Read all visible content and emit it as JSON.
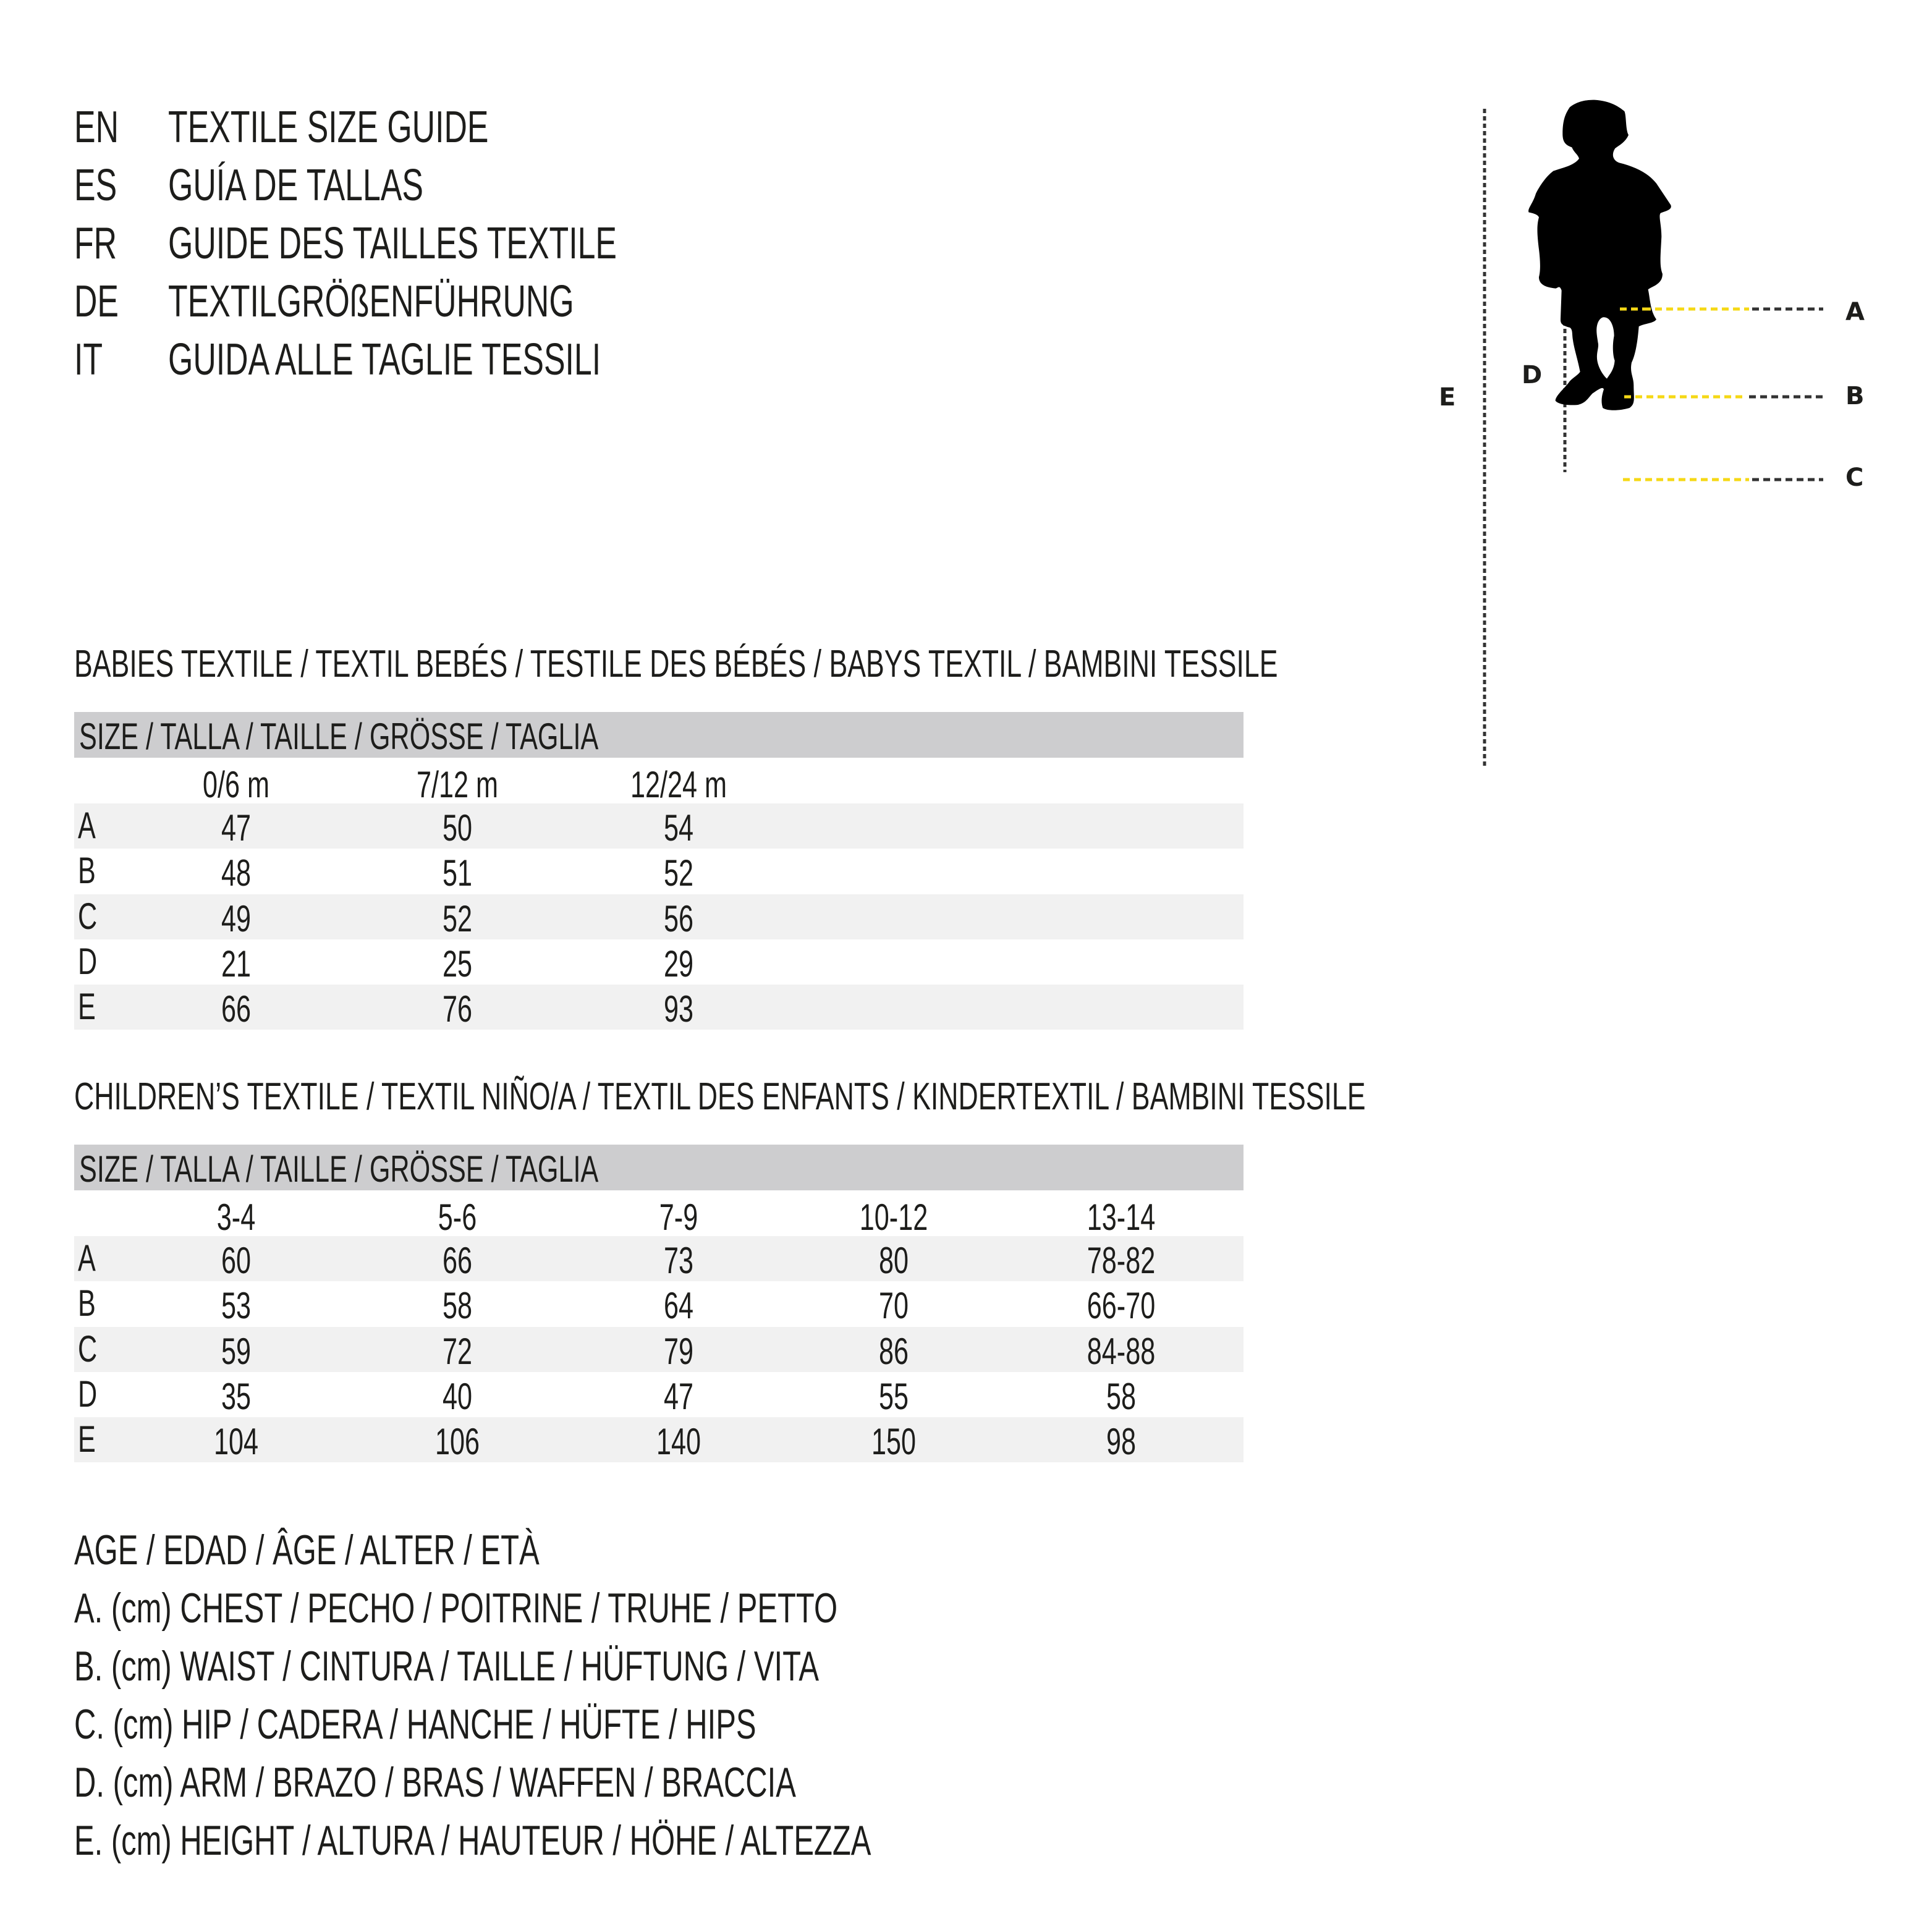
{
  "header": {
    "rows": [
      {
        "code": "EN",
        "title": "TEXTILE SIZE GUIDE"
      },
      {
        "code": "ES",
        "title": "GUÍA DE TALLAS"
      },
      {
        "code": "FR",
        "title": "GUIDE DES TAILLES TEXTILE"
      },
      {
        "code": "DE",
        "title": "TEXTILGRÖßENFÜHRUNG"
      },
      {
        "code": "IT",
        "title": "GUIDA ALLE TAGLIE TESSILI"
      }
    ]
  },
  "figure": {
    "labels": {
      "a": "A",
      "b": "B",
      "c": "C",
      "d": "D",
      "e": "E"
    },
    "guide_color": "#f5d816",
    "silhouette_color": "#000000"
  },
  "babies": {
    "title": "BABIES TEXTILE / TEXTIL BEBÉS / TESTILE DES BÉBÉS / BABYS TEXTIL / BAMBINI TESSILE",
    "size_header": "SIZE / TALLA / TAILLE / GRÖSSE / TAGLIA",
    "columns": [
      "0/6 m",
      "7/12 m",
      "12/24 m"
    ],
    "rows": [
      {
        "label": "A",
        "values": [
          "47",
          "50",
          "54"
        ]
      },
      {
        "label": "B",
        "values": [
          "48",
          "51",
          "52"
        ]
      },
      {
        "label": "C",
        "values": [
          "49",
          "52",
          "56"
        ]
      },
      {
        "label": "D",
        "values": [
          "21",
          "25",
          "29"
        ]
      },
      {
        "label": "E",
        "values": [
          "66",
          "76",
          "93"
        ]
      }
    ]
  },
  "children": {
    "title": "CHILDREN’S TEXTILE / TEXTIL NIÑO/A / TEXTIL DES ENFANTS / KINDERTEXTIL / BAMBINI TESSILE",
    "size_header": "SIZE / TALLA / TAILLE / GRÖSSE / TAGLIA",
    "columns": [
      "3-4",
      "5-6",
      "7-9",
      "10-12",
      "13-14"
    ],
    "rows": [
      {
        "label": "A",
        "values": [
          "60",
          "66",
          "73",
          "80",
          "78-82"
        ]
      },
      {
        "label": "B",
        "values": [
          "53",
          "58",
          "64",
          "70",
          "66-70"
        ]
      },
      {
        "label": "C",
        "values": [
          "59",
          "72",
          "79",
          "86",
          "84-88"
        ]
      },
      {
        "label": "D",
        "values": [
          "35",
          "40",
          "47",
          "55",
          "58"
        ]
      },
      {
        "label": "E",
        "values": [
          "104",
          "106",
          "140",
          "150",
          "98"
        ]
      }
    ]
  },
  "legend": {
    "lines": [
      "AGE / EDAD / ÂGE / ALTER / ETÀ",
      "A. (cm) CHEST / PECHO / POITRINE / TRUHE / PETTO",
      "B. (cm) WAIST / CINTURA / TAILLE / HÜFTUNG / VITA",
      "C. (cm) HIP / CADERA / HANCHE / HÜFTE / HIPS",
      "D. (cm) ARM / BRAZO / BRAS / WAFFEN / BRACCIA",
      "E. (cm) HEIGHT / ALTURA / HAUTEUR / HÖHE / ALTEZZA"
    ]
  }
}
